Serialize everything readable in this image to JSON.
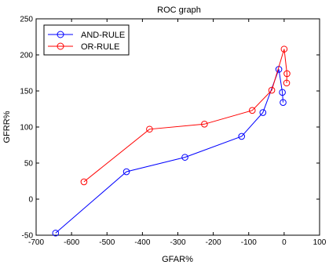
{
  "chart_data": {
    "type": "line",
    "title": "ROC graph",
    "xlabel": "GFAR%",
    "ylabel": "GFRR%",
    "xlim": [
      -700,
      100
    ],
    "ylim": [
      -50,
      250
    ],
    "xticks": [
      -700,
      -600,
      -500,
      -400,
      -300,
      -200,
      -100,
      0,
      100
    ],
    "yticks": [
      -50,
      0,
      50,
      100,
      150,
      200,
      250
    ],
    "xtick_labels": [
      "-700",
      "-600",
      "-500",
      "-400",
      "-300",
      "-200",
      "-100",
      "0",
      "100"
    ],
    "ytick_labels": [
      "-50",
      "0",
      "50",
      "100",
      "150",
      "200",
      "250"
    ],
    "grid": false,
    "legend_position": "top-left",
    "series": [
      {
        "name": "AND-RULE",
        "color": "#0000ff",
        "marker": "circle",
        "x": [
          -645,
          -445,
          -280,
          -120,
          -60,
          -15,
          -5,
          -3
        ],
        "y": [
          -47,
          38,
          58,
          87,
          120,
          180,
          148,
          134
        ]
      },
      {
        "name": "OR-RULE",
        "color": "#ff0000",
        "marker": "circle",
        "x": [
          -565,
          -380,
          -225,
          -90,
          -35,
          0,
          8,
          7
        ],
        "y": [
          24,
          97,
          104,
          123,
          151,
          208,
          174,
          161
        ]
      }
    ]
  }
}
